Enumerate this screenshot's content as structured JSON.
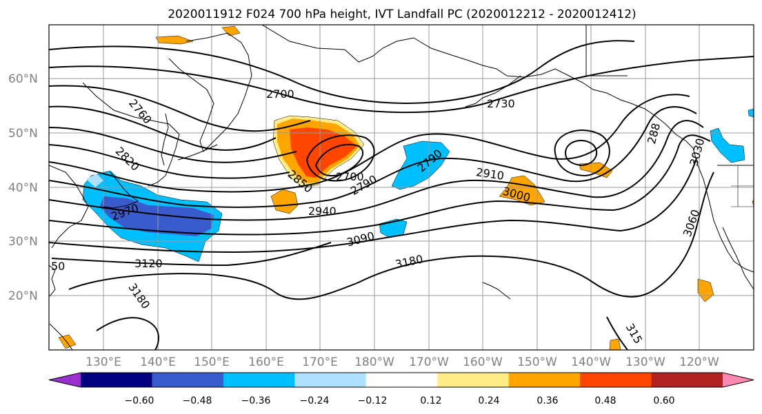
{
  "title": "2020011912 F024 700 hPa height, IVT Landfall PC (2020012212 - 2020012412)",
  "map": {
    "lat_labels": [
      "60°N",
      "50°N",
      "40°N",
      "30°N",
      "20°N"
    ],
    "lon_labels": [
      "130°E",
      "140°E",
      "150°E",
      "160°E",
      "170°E",
      "180°W",
      "170°W",
      "160°W",
      "150°W",
      "140°W",
      "130°W",
      "120°W"
    ],
    "contour_labels": [
      "2700",
      "2730",
      "2760",
      "2820",
      "2850",
      "2790",
      "2700",
      "2790",
      "2910",
      "2940",
      "2970",
      "3000",
      "3090",
      "3120",
      "3180",
      "3180",
      "3060",
      "3030",
      "288",
      "315",
      "50"
    ],
    "colors": {
      "ocean": "#ffffff",
      "coast": "#000000",
      "grid": "#9a9a9a",
      "contour": "#000000"
    }
  },
  "colorbar": {
    "tick_labels": [
      "−0.60",
      "−0.48",
      "−0.36",
      "−0.24",
      "−0.12",
      "0.12",
      "0.24",
      "0.36",
      "0.48",
      "0.60"
    ],
    "colors": [
      "#9b30d0",
      "#000080",
      "#3a5bcb",
      "#00bfff",
      "#b0e0ff",
      "#ffffff",
      "#ffee88",
      "#ffa500",
      "#ff4500",
      "#b22222",
      "#ff88b0"
    ]
  }
}
